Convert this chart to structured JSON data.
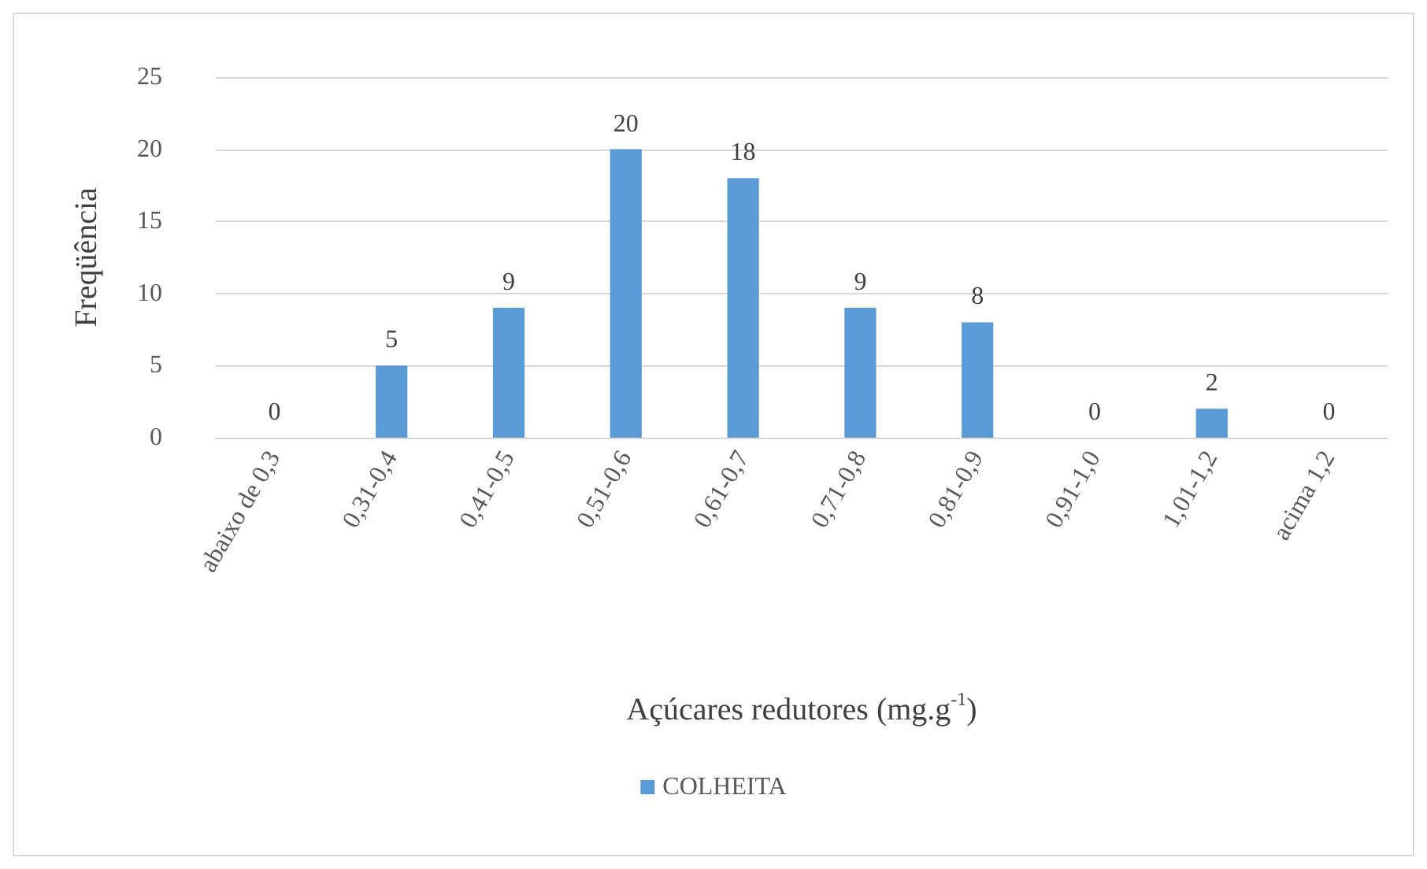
{
  "chart_data": {
    "type": "bar",
    "xlabel": "Açúcares redutores (mg.g$^{-1}$)",
    "ylabel": "Freqüência",
    "categories": [
      "abaixo de 0,3",
      "0,31-0,4",
      "0,41-0,5",
      "0,51-0,6",
      "0,61-0,7",
      "0,71-0,8",
      "0,81-0,9",
      "0,91-1,0",
      "1,01-1,2",
      "acima 1,2"
    ],
    "series": [
      {
        "name": "COLHEITA",
        "color": "#5b9bd5",
        "values": [
          0,
          5,
          9,
          20,
          18,
          9,
          8,
          0,
          2,
          0
        ]
      }
    ],
    "ylim": [
      0,
      25
    ],
    "yticks": [
      0,
      5,
      10,
      15,
      20,
      25
    ],
    "grid": "y",
    "legend": "bottom",
    "data_labels": true
  }
}
